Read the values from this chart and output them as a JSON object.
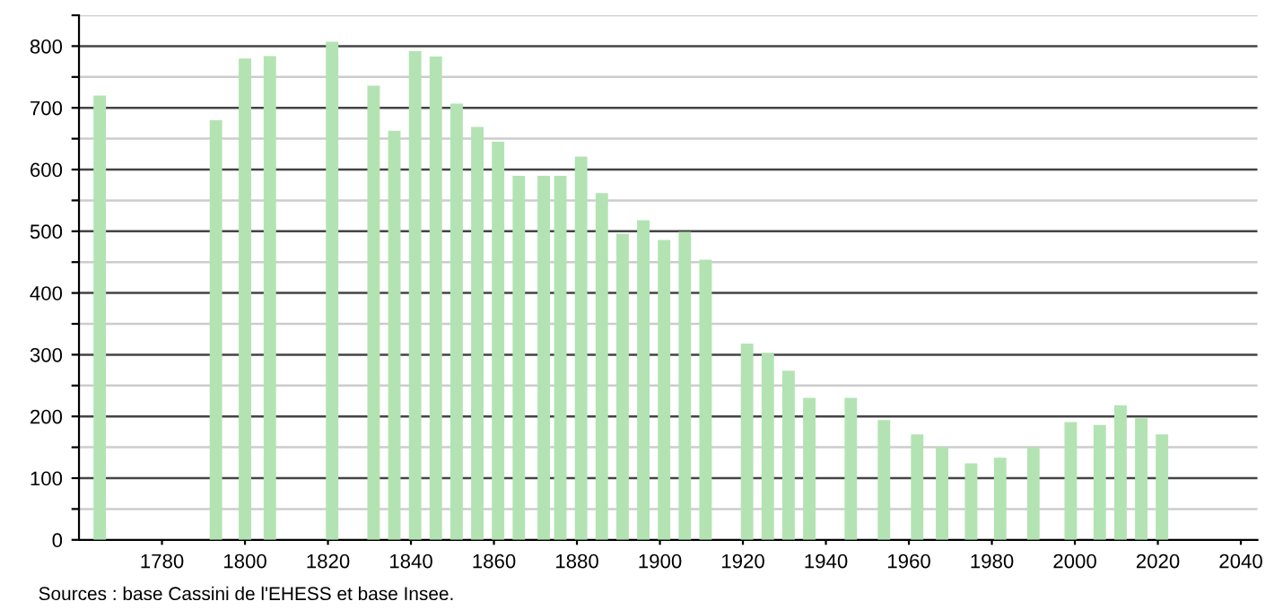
{
  "chart_data": {
    "type": "bar",
    "x": [
      1765,
      1793,
      1800,
      1806,
      1821,
      1831,
      1836,
      1841,
      1846,
      1851,
      1856,
      1861,
      1866,
      1872,
      1876,
      1881,
      1886,
      1891,
      1896,
      1901,
      1906,
      1911,
      1921,
      1926,
      1931,
      1936,
      1946,
      1954,
      1962,
      1968,
      1975,
      1982,
      1990,
      1999,
      2006,
      2011,
      2016,
      2021
    ],
    "values": [
      720,
      680,
      780,
      784,
      807,
      736,
      663,
      792,
      783,
      707,
      669,
      645,
      590,
      590,
      590,
      621,
      562,
      496,
      518,
      486,
      499,
      454,
      318,
      303,
      274,
      230,
      230,
      194,
      171,
      150,
      124,
      133,
      150,
      191,
      186,
      218,
      197,
      171
    ],
    "color": "#b3e3b3",
    "xlim": [
      1760,
      2044
    ],
    "xticks": [
      1780,
      1800,
      1820,
      1840,
      1860,
      1880,
      1900,
      1920,
      1940,
      1960,
      1980,
      2000,
      2020,
      2040
    ],
    "ylim": [
      0,
      850
    ],
    "yticks": [
      0,
      {
        "value": 50,
        "label": null
      },
      100,
      {
        "value": 150,
        "label": null
      },
      200,
      {
        "value": 250,
        "label": null
      },
      300,
      {
        "value": 350,
        "label": null
      },
      400,
      {
        "value": 450,
        "label": null
      },
      500,
      {
        "value": 550,
        "label": null
      },
      600,
      {
        "value": 650,
        "label": null
      },
      700,
      {
        "value": 750,
        "label": null
      },
      800,
      {
        "value": 850,
        "label": null
      }
    ],
    "grid": "y",
    "annotations": [
      "Sources : base Cassini de l'EHESS et base Insee."
    ]
  }
}
